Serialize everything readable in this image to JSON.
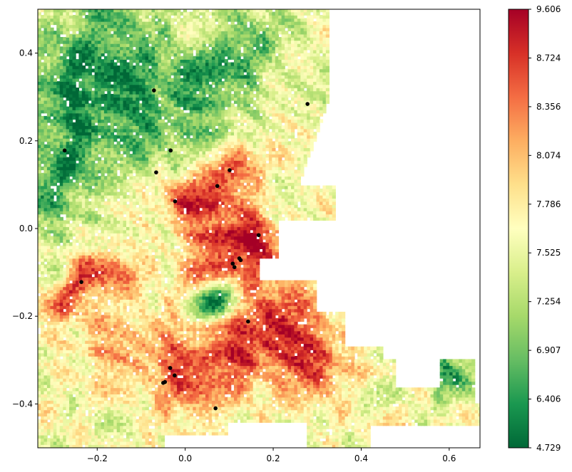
{
  "chart_data": {
    "type": "scatter",
    "title": "",
    "xlabel": "",
    "ylabel": "",
    "xlim": [
      -0.335,
      0.67
    ],
    "ylim": [
      -0.5,
      0.5
    ],
    "x_ticks": [
      -0.2,
      0.0,
      0.2,
      0.4,
      0.6
    ],
    "x_tick_labels": [
      "−0.2",
      "0.0",
      "0.2",
      "0.4",
      "0.6"
    ],
    "y_ticks": [
      -0.4,
      -0.2,
      0.0,
      0.2,
      0.4
    ],
    "y_tick_labels": [
      "−0.4",
      "−0.2",
      "0.0",
      "0.2",
      "0.4"
    ],
    "grid": false,
    "legend": "none",
    "colorbar": {
      "colormap": "RdYlGn_r",
      "min": 4.729,
      "max": 9.606,
      "ticks": [
        4.729,
        6.406,
        6.907,
        7.254,
        7.525,
        7.786,
        8.074,
        8.356,
        8.724,
        9.606
      ],
      "tick_labels": [
        "4.729",
        "6.406",
        "6.907",
        "7.254",
        "7.525",
        "7.786",
        "8.074",
        "8.356",
        "8.724",
        "9.606"
      ],
      "stops": [
        "#006837",
        "#1a9850",
        "#66bd63",
        "#a6d96a",
        "#d9ef8b",
        "#ffffbf",
        "#fee08b",
        "#fdae61",
        "#f46d43",
        "#d73027",
        "#a50026"
      ]
    },
    "marker_points": [
      {
        "x": -0.071,
        "y": 0.315
      },
      {
        "x": -0.274,
        "y": 0.178
      },
      {
        "x": -0.033,
        "y": 0.178
      },
      {
        "x": -0.066,
        "y": 0.128
      },
      {
        "x": 0.101,
        "y": 0.133
      },
      {
        "x": 0.073,
        "y": 0.097
      },
      {
        "x": -0.023,
        "y": 0.062
      },
      {
        "x": 0.278,
        "y": 0.284
      },
      {
        "x": 0.167,
        "y": -0.015
      },
      {
        "x": 0.123,
        "y": -0.068
      },
      {
        "x": 0.126,
        "y": -0.072
      },
      {
        "x": 0.108,
        "y": -0.08
      },
      {
        "x": 0.112,
        "y": -0.088
      },
      {
        "x": -0.236,
        "y": -0.122
      },
      {
        "x": 0.143,
        "y": -0.212
      },
      {
        "x": -0.034,
        "y": -0.318
      },
      {
        "x": -0.024,
        "y": -0.335
      },
      {
        "x": -0.046,
        "y": -0.35
      },
      {
        "x": -0.05,
        "y": -0.352
      },
      {
        "x": 0.069,
        "y": -0.41
      }
    ],
    "marker_color": "#000000"
  }
}
